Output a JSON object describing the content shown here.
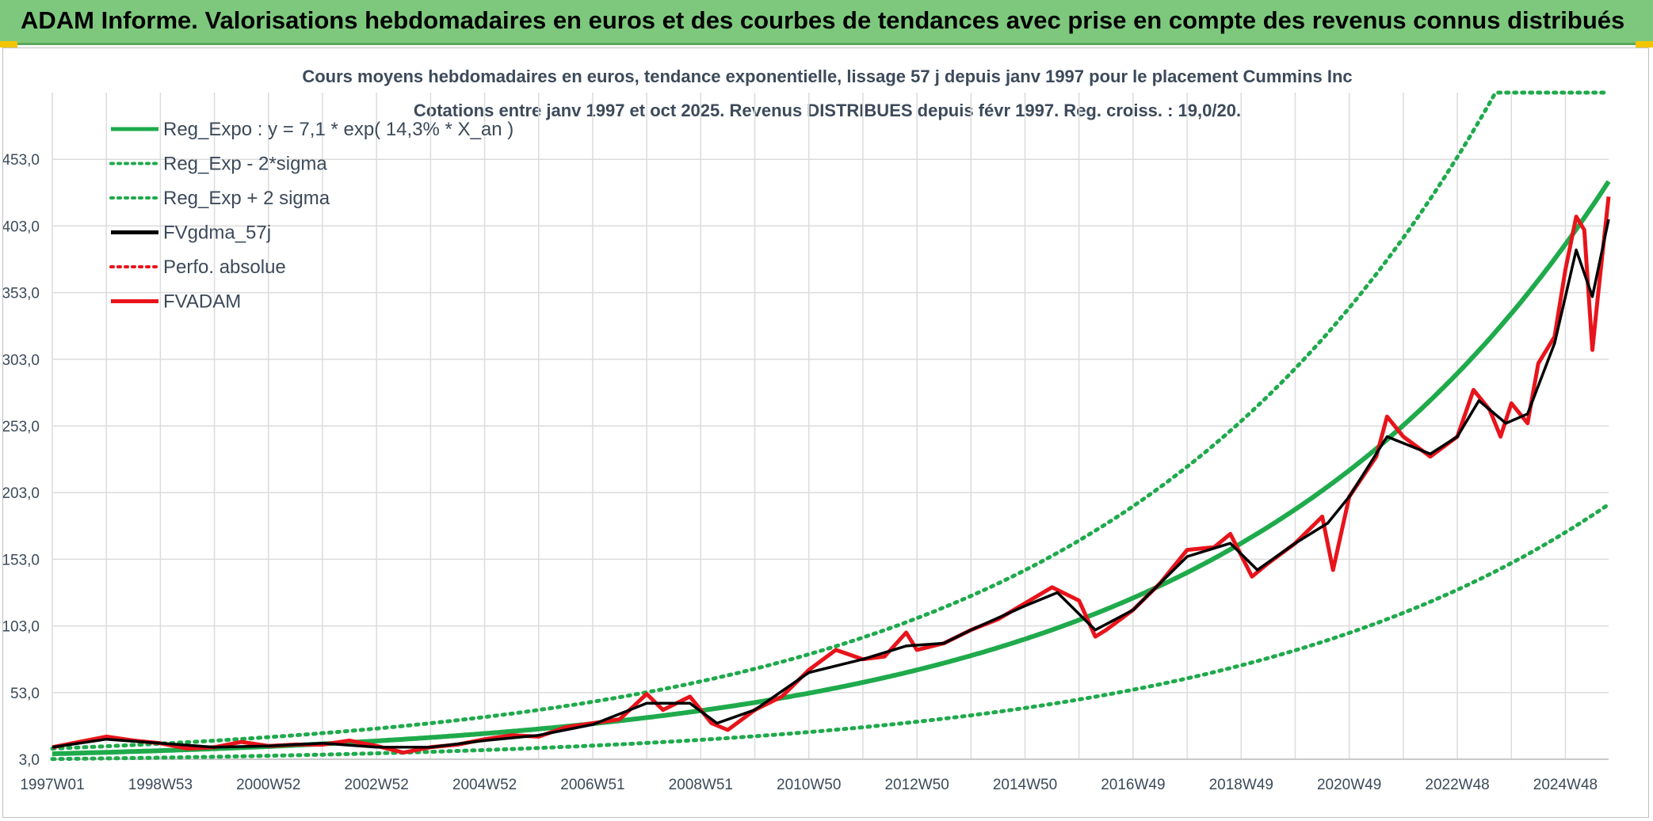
{
  "banner": {
    "title": "ADAM Informe. Valorisations hebdomadaires en euros et des courbes de tendances avec prise en compte des revenus connus distribués"
  },
  "colors": {
    "banner_bg": "#7dc87d",
    "corner_accent": "#f2c500",
    "reg_line": "#1faa4c",
    "price_line": "#e8141b",
    "smooth_line": "#000000",
    "grid": "#dcdcdc",
    "title_text": "#3c4a5a"
  },
  "chart_data": {
    "type": "line",
    "title": "Cours moyens hebdomadaires en euros, tendance exponentielle, lissage 57 j depuis janv 1997 pour le placement Cummins Inc",
    "subtitle": "Cotations entre janv 1997 et oct 2025. Revenus DISTRIBUES depuis févr 1997. Reg. croiss. : 19,0/20.",
    "xlabel": "",
    "ylabel": "",
    "x_unit": "year",
    "xlim": [
      1997.0,
      2025.8
    ],
    "ylim": [
      3.0,
      503.0
    ],
    "y_ticks": [
      "3,0",
      "53,0",
      "103,0",
      "153,0",
      "203,0",
      "253,0",
      "303,0",
      "353,0",
      "403,0",
      "453,0"
    ],
    "y_tick_values": [
      3,
      53,
      103,
      153,
      203,
      253,
      303,
      353,
      403,
      453
    ],
    "x_ticks": [
      "1997W01",
      "1998W53",
      "2000W52",
      "2002W52",
      "2004W52",
      "2006W51",
      "2008W51",
      "2010W50",
      "2012W50",
      "2014W50",
      "2016W49",
      "2018W49",
      "2020W49",
      "2022W48",
      "2024W48"
    ],
    "x_tick_values": [
      1997.0,
      1999.0,
      2001.0,
      2003.0,
      2005.0,
      2007.0,
      2009.0,
      2011.0,
      2013.0,
      2015.0,
      2017.0,
      2019.0,
      2021.0,
      2023.0,
      2025.0
    ],
    "grid": true,
    "legend_position": "top-left",
    "legend": [
      {
        "label": "Reg_Expo : y = 7,1 * exp( 14,3% *  X_an )",
        "color": "#1faa4c",
        "style": "solid"
      },
      {
        "label": "Reg_Exp - 2*sigma",
        "color": "#1faa4c",
        "style": "dotted"
      },
      {
        "label": "Reg_Exp + 2 sigma",
        "color": "#1faa4c",
        "style": "dotted"
      },
      {
        "label": "FVgdma_57j",
        "color": "#000000",
        "style": "solid"
      },
      {
        "label": "Perfo. absolue",
        "color": "#e8141b",
        "style": "dotted"
      },
      {
        "label": "FVADAM",
        "color": "#e8141b",
        "style": "solid"
      }
    ],
    "regression": {
      "a": 7.1,
      "rate": 0.143,
      "x0": 1997.0,
      "sigma_factor": 0.555
    },
    "series": [
      {
        "name": "FVADAM",
        "points": [
          [
            1997.0,
            12
          ],
          [
            1997.5,
            16
          ],
          [
            1998.0,
            20
          ],
          [
            1998.5,
            17
          ],
          [
            1999.0,
            15
          ],
          [
            1999.5,
            11
          ],
          [
            2000.0,
            12
          ],
          [
            2000.5,
            16
          ],
          [
            2001.0,
            13
          ],
          [
            2001.5,
            14
          ],
          [
            2002.0,
            14
          ],
          [
            2002.5,
            17
          ],
          [
            2003.0,
            13
          ],
          [
            2003.5,
            8
          ],
          [
            2004.0,
            12
          ],
          [
            2004.5,
            14
          ],
          [
            2005.0,
            18
          ],
          [
            2005.5,
            21
          ],
          [
            2006.0,
            20
          ],
          [
            2006.5,
            27
          ],
          [
            2007.0,
            30
          ],
          [
            2007.5,
            33
          ],
          [
            2008.0,
            52
          ],
          [
            2008.3,
            40
          ],
          [
            2008.8,
            50
          ],
          [
            2009.2,
            30
          ],
          [
            2009.5,
            25
          ],
          [
            2010.0,
            40
          ],
          [
            2010.5,
            50
          ],
          [
            2011.0,
            70
          ],
          [
            2011.5,
            85
          ],
          [
            2012.0,
            78
          ],
          [
            2012.4,
            80
          ],
          [
            2012.8,
            98
          ],
          [
            2013.0,
            85
          ],
          [
            2013.5,
            90
          ],
          [
            2014.0,
            100
          ],
          [
            2014.5,
            108
          ],
          [
            2015.0,
            120
          ],
          [
            2015.5,
            132
          ],
          [
            2016.0,
            122
          ],
          [
            2016.3,
            95
          ],
          [
            2016.5,
            100
          ],
          [
            2017.0,
            115
          ],
          [
            2017.5,
            135
          ],
          [
            2018.0,
            160
          ],
          [
            2018.5,
            162
          ],
          [
            2018.8,
            172
          ],
          [
            2019.2,
            140
          ],
          [
            2019.5,
            150
          ],
          [
            2020.0,
            165
          ],
          [
            2020.5,
            185
          ],
          [
            2020.7,
            145
          ],
          [
            2021.0,
            200
          ],
          [
            2021.5,
            230
          ],
          [
            2021.7,
            260
          ],
          [
            2022.0,
            245
          ],
          [
            2022.5,
            230
          ],
          [
            2023.0,
            245
          ],
          [
            2023.3,
            280
          ],
          [
            2023.6,
            265
          ],
          [
            2023.8,
            245
          ],
          [
            2024.0,
            270
          ],
          [
            2024.3,
            255
          ],
          [
            2024.5,
            300
          ],
          [
            2024.8,
            320
          ],
          [
            2025.0,
            370
          ],
          [
            2025.2,
            410
          ],
          [
            2025.35,
            400
          ],
          [
            2025.5,
            310
          ],
          [
            2025.6,
            350
          ],
          [
            2025.8,
            425
          ]
        ]
      },
      {
        "name": "FVgdma_57j",
        "points": [
          [
            1997.0,
            12
          ],
          [
            1998.0,
            18
          ],
          [
            1999.0,
            15
          ],
          [
            2000.0,
            12
          ],
          [
            2001.0,
            13
          ],
          [
            2002.0,
            15
          ],
          [
            2003.0,
            12
          ],
          [
            2004.0,
            12
          ],
          [
            2005.0,
            17
          ],
          [
            2006.0,
            21
          ],
          [
            2007.0,
            29
          ],
          [
            2008.0,
            45
          ],
          [
            2008.8,
            45
          ],
          [
            2009.3,
            30
          ],
          [
            2010.0,
            40
          ],
          [
            2011.0,
            68
          ],
          [
            2012.0,
            78
          ],
          [
            2012.8,
            88
          ],
          [
            2013.5,
            90
          ],
          [
            2014.0,
            100
          ],
          [
            2015.0,
            118
          ],
          [
            2015.6,
            128
          ],
          [
            2016.3,
            100
          ],
          [
            2017.0,
            115
          ],
          [
            2018.0,
            155
          ],
          [
            2018.8,
            165
          ],
          [
            2019.3,
            145
          ],
          [
            2020.0,
            165
          ],
          [
            2020.6,
            180
          ],
          [
            2021.0,
            200
          ],
          [
            2021.7,
            245
          ],
          [
            2022.5,
            232
          ],
          [
            2023.0,
            245
          ],
          [
            2023.4,
            272
          ],
          [
            2023.9,
            255
          ],
          [
            2024.3,
            262
          ],
          [
            2024.8,
            315
          ],
          [
            2025.2,
            385
          ],
          [
            2025.5,
            350
          ],
          [
            2025.8,
            408
          ]
        ]
      }
    ]
  }
}
